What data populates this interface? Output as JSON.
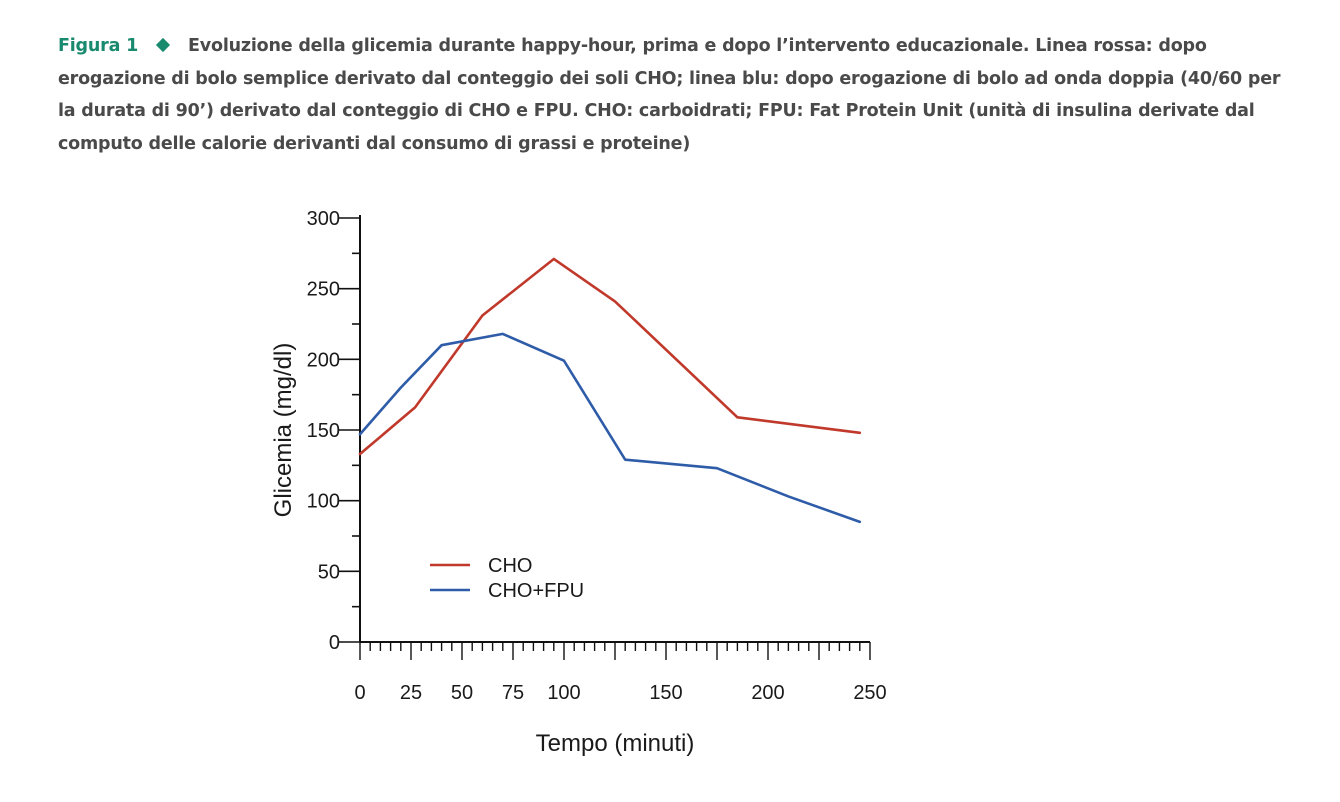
{
  "caption": {
    "label": "Figura 1",
    "text": "Evoluzione della glicemia durante happy-hour, prima e dopo l’intervento educazionale. Linea rossa: dopo erogazione di bolo semplice derivato dal conteggio dei soli CHO; linea blu: dopo erogazione di bolo ad onda doppia (40/60 per la durata di 90’) derivato dal conteggio di CHO e FPU. CHO: carboidrati; FPU: Fat Protein Unit (unità di insulina derivate dal computo delle calorie derivanti dal consumo di grassi e proteine)"
  },
  "chart_data": {
    "type": "line",
    "title": "",
    "xlabel": "Tempo (minuti)",
    "ylabel": "Glicemia (mg/dl)",
    "xlim": [
      0,
      250
    ],
    "ylim": [
      0,
      300
    ],
    "xticks": [
      0,
      25,
      50,
      75,
      100,
      150,
      200,
      250
    ],
    "yticks": [
      0,
      50,
      100,
      150,
      200,
      250,
      300
    ],
    "grid": false,
    "legend_position": "lower-left",
    "series": [
      {
        "name": "CHO",
        "color": "#c0392b",
        "x": [
          0,
          27,
          60,
          95,
          125,
          185,
          245
        ],
        "y": [
          133,
          166,
          231,
          271,
          241,
          159,
          148
        ]
      },
      {
        "name": "CHO+FPU",
        "color": "#2e5ca8",
        "x": [
          0,
          20,
          40,
          70,
          100,
          130,
          175,
          210,
          245
        ],
        "y": [
          147,
          180,
          210,
          218,
          199,
          129,
          123,
          103,
          85
        ]
      }
    ]
  }
}
